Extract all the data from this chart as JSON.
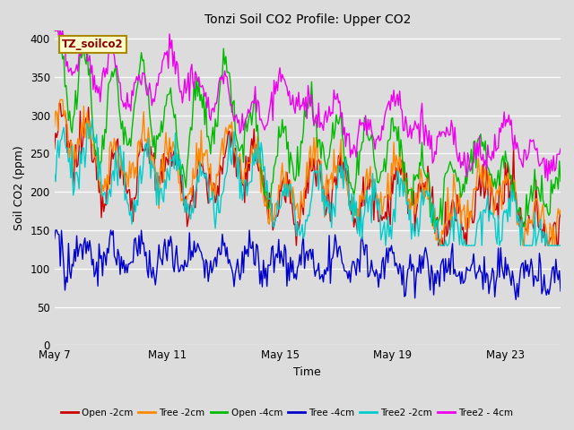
{
  "title": "Tonzi Soil CO2 Profile: Upper CO2",
  "xlabel": "Time",
  "ylabel": "Soil CO2 (ppm)",
  "ylim": [
    0,
    410
  ],
  "yticks": [
    0,
    50,
    100,
    150,
    200,
    250,
    300,
    350,
    400
  ],
  "fig_bg": "#dcdcdc",
  "plot_bg": "#dcdcdc",
  "legend_label": "TZ_soilco2",
  "series": [
    {
      "name": "Open -2cm",
      "color": "#cc0000",
      "linewidth": 1.0
    },
    {
      "name": "Tree -2cm",
      "color": "#ff8800",
      "linewidth": 1.0
    },
    {
      "name": "Open -4cm",
      "color": "#00bb00",
      "linewidth": 1.0
    },
    {
      "name": "Tree -4cm",
      "color": "#0000cc",
      "linewidth": 1.0
    },
    {
      "name": "Tree2 -2cm",
      "color": "#00cccc",
      "linewidth": 1.0
    },
    {
      "name": "Tree2 - 4cm",
      "color": "#ee00ee",
      "linewidth": 1.0
    }
  ],
  "x_tick_labels": [
    "May 7",
    "May 11",
    "May 15",
    "May 19",
    "May 23"
  ],
  "x_tick_positions": [
    0,
    96,
    192,
    288,
    384
  ],
  "n_points": 432
}
